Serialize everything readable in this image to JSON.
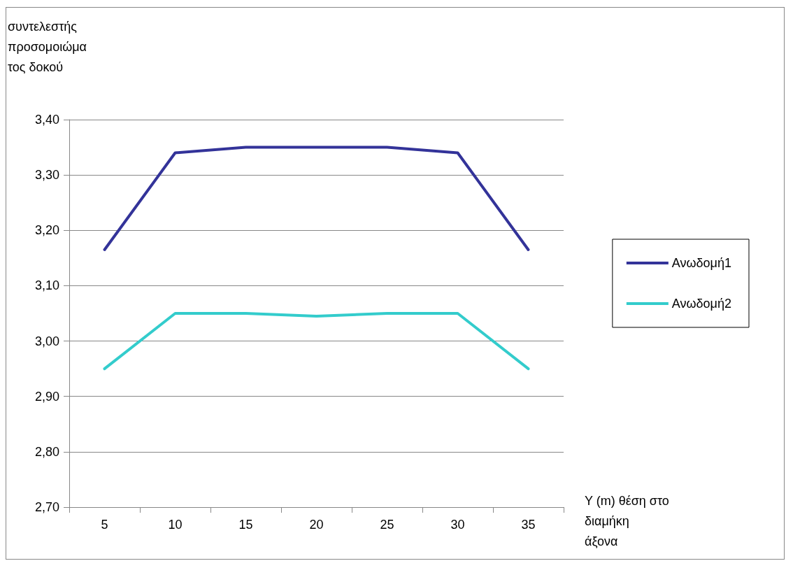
{
  "chart_data": {
    "type": "line",
    "ylabel": "συντελεστής προσομοιώματος δοκού",
    "xlabel": "Y (m) θέση στο διαμήκη άξονα",
    "categories": [
      "5",
      "10",
      "15",
      "20",
      "25",
      "30",
      "35"
    ],
    "series": [
      {
        "name": "Ανωδομή1",
        "color": "#333399",
        "values": [
          3.165,
          3.34,
          3.35,
          3.35,
          3.35,
          3.34,
          3.165
        ]
      },
      {
        "name": "Ανωδομή2",
        "color": "#33cccc",
        "values": [
          2.95,
          3.05,
          3.05,
          3.045,
          3.05,
          3.05,
          2.95
        ]
      }
    ],
    "ylim": [
      2.7,
      3.4
    ],
    "yticks": [
      {
        "value": 2.7,
        "label": "2,70"
      },
      {
        "value": 2.8,
        "label": "2,80"
      },
      {
        "value": 2.9,
        "label": "2,90"
      },
      {
        "value": 3.0,
        "label": "3,00"
      },
      {
        "value": 3.1,
        "label": "3,10"
      },
      {
        "value": 3.2,
        "label": "3,20"
      },
      {
        "value": 3.3,
        "label": "3,30"
      },
      {
        "value": 3.4,
        "label": "3,40"
      }
    ],
    "grid": "y",
    "legend": "right",
    "marker": "none",
    "line_style": "solid"
  }
}
